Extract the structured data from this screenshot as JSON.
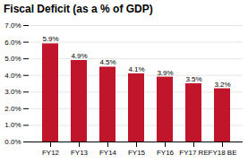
{
  "chart_data": {
    "type": "bar",
    "title": "Fiscal Deficit (as a % of GDP)",
    "categories": [
      "FY12",
      "FY13",
      "FY14",
      "FY15",
      "FY16",
      "FY17 RE",
      "FY18 BE"
    ],
    "values": [
      5.9,
      4.9,
      4.5,
      4.1,
      3.9,
      3.5,
      3.2
    ],
    "value_labels": [
      "5.9%",
      "4.9%",
      "4.5%",
      "4.1%",
      "3.9%",
      "3.5%",
      "3.2%"
    ],
    "data_labels": true,
    "color": "#c0152a",
    "ylim": [
      0,
      7.0
    ],
    "yticks": [
      {
        "value": 0.0,
        "label": "0.0%"
      },
      {
        "value": 1.0,
        "label": "1.0%"
      },
      {
        "value": 2.0,
        "label": "2.0%"
      },
      {
        "value": 3.0,
        "label": "3.0%"
      },
      {
        "value": 4.0,
        "label": "4.0%"
      },
      {
        "value": 5.0,
        "label": "5.0%"
      },
      {
        "value": 6.0,
        "label": "6.0%"
      },
      {
        "value": 7.0,
        "label": "7.0%"
      }
    ],
    "grid": true
  }
}
